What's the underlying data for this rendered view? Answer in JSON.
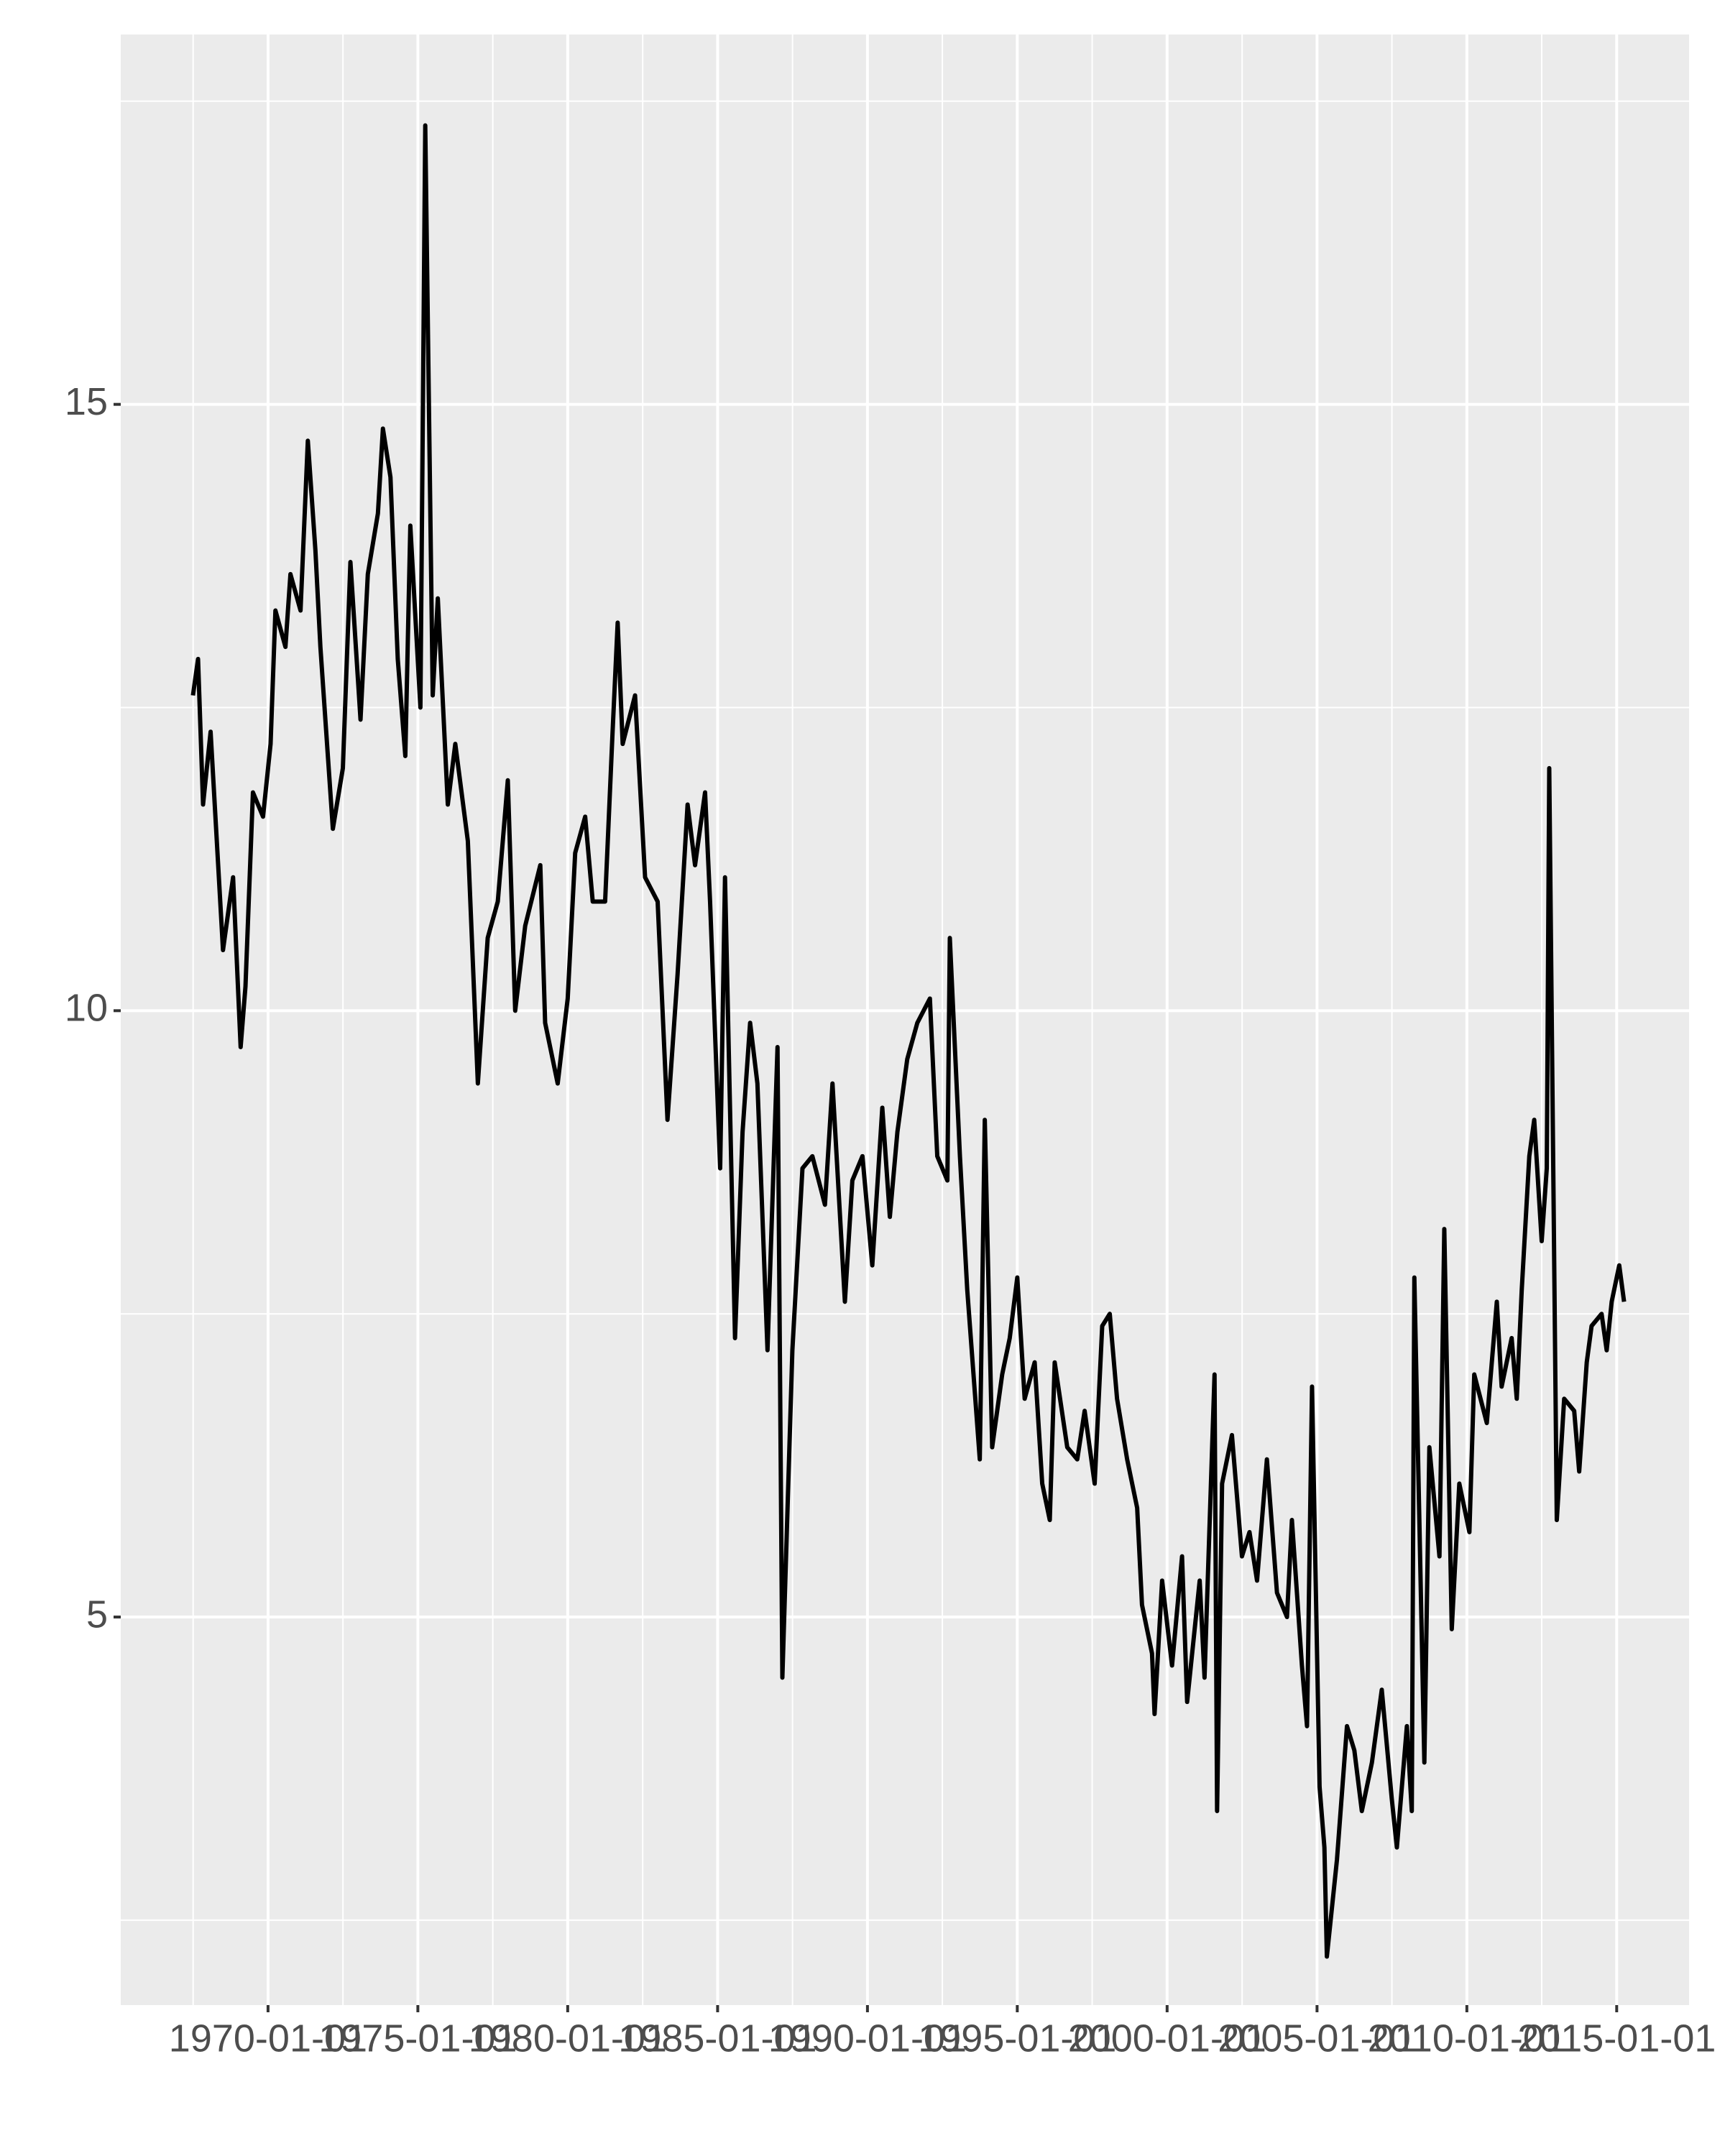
{
  "chart_data": {
    "type": "line",
    "x": [
      "1967-07-01",
      "1967-09-01",
      "1967-11-01",
      "1968-02-01",
      "1968-07-01",
      "1968-11-01",
      "1969-02-01",
      "1969-04-01",
      "1969-07-01",
      "1969-11-01",
      "1970-02-01",
      "1970-04-01",
      "1970-08-01",
      "1970-10-01",
      "1971-02-01",
      "1971-05-01",
      "1971-08-01",
      "1971-10-01",
      "1972-03-01",
      "1972-07-01",
      "1972-10-01",
      "1973-02-01",
      "1973-05-01",
      "1973-09-01",
      "1973-11-01",
      "1974-02-01",
      "1974-05-01",
      "1974-08-01",
      "1974-10-01",
      "1975-02-01",
      "1975-04-01",
      "1975-07-01",
      "1975-09-01",
      "1976-01-01",
      "1976-04-01",
      "1976-09-01",
      "1977-01-01",
      "1977-05-01",
      "1977-09-01",
      "1978-01-01",
      "1978-04-01",
      "1978-08-01",
      "1979-02-01",
      "1979-04-01",
      "1979-09-01",
      "1980-01-01",
      "1980-04-01",
      "1980-08-01",
      "1980-11-01",
      "1981-04-01",
      "1981-07-01",
      "1981-09-01",
      "1981-11-01",
      "1982-04-01",
      "1982-08-01",
      "1983-01-01",
      "1983-05-01",
      "1983-09-01",
      "1984-01-01",
      "1984-04-01",
      "1984-08-01",
      "1984-10-01",
      "1985-02-01",
      "1985-04-01",
      "1985-08-01",
      "1985-11-01",
      "1986-02-01",
      "1986-05-01",
      "1986-09-01",
      "1987-01-01",
      "1987-03-01",
      "1987-07-01",
      "1987-11-01",
      "1988-03-01",
      "1988-08-01",
      "1988-11-01",
      "1989-04-01",
      "1989-07-01",
      "1989-11-01",
      "1990-03-01",
      "1990-07-01",
      "1990-10-01",
      "1991-01-01",
      "1991-05-01",
      "1991-09-01",
      "1992-02-01",
      "1992-05-01",
      "1992-09-01",
      "1992-10-01",
      "1993-02-01",
      "1993-05-01",
      "1993-10-01",
      "1993-12-01",
      "1994-03-01",
      "1994-07-01",
      "1994-10-01",
      "1995-01-01",
      "1995-04-01",
      "1995-08-01",
      "1995-11-01",
      "1996-02-01",
      "1996-04-01",
      "1996-09-01",
      "1997-01-01",
      "1997-04-01",
      "1997-08-01",
      "1997-11-01",
      "1998-02-01",
      "1998-05-01",
      "1998-09-01",
      "1999-01-01",
      "1999-03-01",
      "1999-07-01",
      "1999-08-01",
      "1999-11-01",
      "2000-03-01",
      "2000-07-01",
      "2000-09-01",
      "2001-02-01",
      "2001-04-01",
      "2001-08-01",
      "2001-09-01",
      "2001-11-01",
      "2002-03-01",
      "2002-07-01",
      "2002-10-01",
      "2003-01-01",
      "2003-05-01",
      "2003-09-01",
      "2004-01-01",
      "2004-03-01",
      "2004-07-01",
      "2004-09-01",
      "2004-11-01",
      "2005-02-01",
      "2005-04-01",
      "2005-05-01",
      "2005-09-01",
      "2006-01-01",
      "2006-04-01",
      "2006-07-01",
      "2006-11-01",
      "2007-03-01",
      "2007-07-01",
      "2007-09-01",
      "2008-01-01",
      "2008-03-01",
      "2008-04-01",
      "2008-08-01",
      "2008-10-01",
      "2009-02-01",
      "2009-04-01",
      "2009-07-01",
      "2009-10-01",
      "2010-02-01",
      "2010-04-01",
      "2010-09-01",
      "2011-01-01",
      "2011-03-01",
      "2011-07-01",
      "2011-09-01",
      "2011-11-01",
      "2012-02-01",
      "2012-04-01",
      "2012-07-01",
      "2012-09-01",
      "2012-10-01",
      "2013-01-01",
      "2013-04-01",
      "2013-08-01",
      "2013-10-01",
      "2014-01-01",
      "2014-03-01",
      "2014-07-01",
      "2014-09-01",
      "2014-11-01",
      "2015-02-01",
      "2015-04-01"
    ],
    "values": [
      12.6,
      12.9,
      11.7,
      12.3,
      10.5,
      11.1,
      9.7,
      10.2,
      11.8,
      11.6,
      12.2,
      13.3,
      13.0,
      13.6,
      13.3,
      14.7,
      13.8,
      13.0,
      11.5,
      12.0,
      13.7,
      12.4,
      13.6,
      14.1,
      14.8,
      14.4,
      12.9,
      12.1,
      14.0,
      12.5,
      17.3,
      12.6,
      13.4,
      11.7,
      12.2,
      11.4,
      9.4,
      10.6,
      10.9,
      11.9,
      10.0,
      10.7,
      11.2,
      9.9,
      9.4,
      10.1,
      11.3,
      11.6,
      10.9,
      10.9,
      12.3,
      13.2,
      12.2,
      12.6,
      11.1,
      10.9,
      9.1,
      10.3,
      11.7,
      11.2,
      11.8,
      10.9,
      8.7,
      11.1,
      7.3,
      9.0,
      9.9,
      9.4,
      7.2,
      9.7,
      4.5,
      7.2,
      8.7,
      8.8,
      8.4,
      9.4,
      7.6,
      8.6,
      8.8,
      7.9,
      9.2,
      8.3,
      9.0,
      9.6,
      9.9,
      10.1,
      8.8,
      8.6,
      10.6,
      8.8,
      7.7,
      6.3,
      9.1,
      6.4,
      7.0,
      7.3,
      7.8,
      6.8,
      7.1,
      6.1,
      5.8,
      7.1,
      6.4,
      6.3,
      6.7,
      6.1,
      7.4,
      7.5,
      6.8,
      6.3,
      5.9,
      5.1,
      4.7,
      4.2,
      5.3,
      4.6,
      5.5,
      4.3,
      5.3,
      4.5,
      7.0,
      3.4,
      6.1,
      6.5,
      5.5,
      5.7,
      5.3,
      6.3,
      5.2,
      5.0,
      5.8,
      4.6,
      4.1,
      6.9,
      3.6,
      3.1,
      2.2,
      3.0,
      4.1,
      3.9,
      3.4,
      3.8,
      4.4,
      3.5,
      3.1,
      4.1,
      3.4,
      7.8,
      3.8,
      6.4,
      5.5,
      8.2,
      4.9,
      6.1,
      5.7,
      7.0,
      6.6,
      7.6,
      6.9,
      7.3,
      6.8,
      7.7,
      8.8,
      9.1,
      8.1,
      8.7,
      12.0,
      5.8,
      6.8,
      6.7,
      6.2,
      7.1,
      7.4,
      7.5,
      7.2,
      7.6,
      7.9,
      7.6
    ],
    "color": "#000000",
    "xlim": [
      "1965-02-01",
      "2017-06-01"
    ],
    "xticks": [
      "1970-01-01",
      "1975-01-01",
      "1980-01-01",
      "1985-01-01",
      "1990-01-01",
      "1995-01-01",
      "2000-01-01",
      "2005-01-01",
      "2010-01-01",
      "2015-01-01"
    ],
    "ylim": [
      1.8,
      18.05
    ],
    "yticks": [
      5,
      10,
      15
    ],
    "grid": true
  }
}
